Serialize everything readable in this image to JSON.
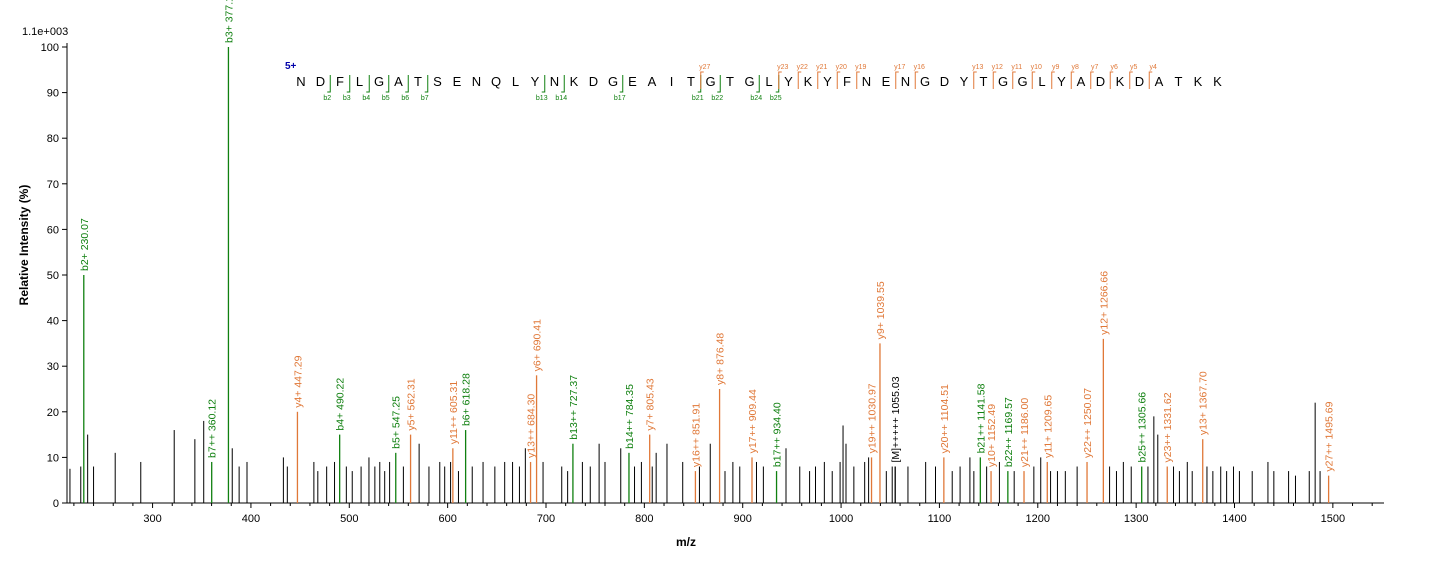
{
  "chart_data": {
    "type": "bar",
    "xlabel": "m/z",
    "ylabel": "Relative   Intensity (%)",
    "scale_label": "1.1e+003",
    "xlim": [
      213,
      1552
    ],
    "ylim": [
      0,
      100
    ],
    "x_ticks": [
      300,
      400,
      500,
      600,
      700,
      800,
      900,
      1000,
      1100,
      1200,
      1300,
      1400,
      1500
    ],
    "y_ticks": [
      0,
      10,
      20,
      30,
      40,
      50,
      60,
      70,
      80,
      90,
      100
    ],
    "colors": {
      "b": "#108010",
      "y": "#e07838",
      "other": "#000000",
      "charge": "#0000aa",
      "axis": "#000000"
    },
    "labeled_peaks": [
      {
        "type": "b",
        "mz": 230.07,
        "y": 50,
        "label": "b2+ 230.07"
      },
      {
        "type": "b",
        "mz": 360.12,
        "y": 9,
        "label": "b7++ 360.12"
      },
      {
        "type": "b",
        "mz": 377.14,
        "y": 100,
        "label": "b3+ 377.14"
      },
      {
        "type": "y",
        "mz": 447.29,
        "y": 20,
        "label": "y4+ 447.29"
      },
      {
        "type": "b",
        "mz": 490.22,
        "y": 15,
        "label": "b4+ 490.22"
      },
      {
        "type": "b",
        "mz": 547.25,
        "y": 11,
        "label": "b5+ 547.25"
      },
      {
        "type": "y",
        "mz": 562.31,
        "y": 15,
        "label": "y5+ 562.31"
      },
      {
        "type": "y",
        "mz": 605.31,
        "y": 12,
        "label": "y11++ 605.31"
      },
      {
        "type": "b",
        "mz": 618.28,
        "y": 16,
        "label": "b6+ 618.28"
      },
      {
        "type": "y",
        "mz": 684.3,
        "y": 9,
        "label": "y13++ 684.30"
      },
      {
        "type": "y",
        "mz": 690.41,
        "y": 28,
        "label": "y6+ 690.41"
      },
      {
        "type": "b",
        "mz": 727.37,
        "y": 13,
        "label": "b13++ 727.37"
      },
      {
        "type": "b",
        "mz": 784.35,
        "y": 11,
        "label": "b14++ 784.35"
      },
      {
        "type": "y",
        "mz": 805.43,
        "y": 15,
        "label": "y7+ 805.43"
      },
      {
        "type": "y",
        "mz": 851.91,
        "y": 7,
        "label": "y16++ 851.91"
      },
      {
        "type": "y",
        "mz": 876.48,
        "y": 25,
        "label": "y8+ 876.48"
      },
      {
        "type": "y",
        "mz": 909.44,
        "y": 10,
        "label": "y17++ 909.44"
      },
      {
        "type": "b",
        "mz": 934.4,
        "y": 7,
        "label": "b17++ 934.40"
      },
      {
        "type": "y",
        "mz": 1030.97,
        "y": 10,
        "label": "y19++ 1030.97"
      },
      {
        "type": "y",
        "mz": 1039.55,
        "y": 35,
        "label": "y9+ 1039.55"
      },
      {
        "type": "other",
        "mz": 1055.03,
        "y": 8,
        "label": "[M]+++++ 1055.03"
      },
      {
        "type": "y",
        "mz": 1104.51,
        "y": 10,
        "label": "y20++ 1104.51"
      },
      {
        "type": "b",
        "mz": 1141.58,
        "y": 10,
        "label": "b21++ 1141.58"
      },
      {
        "type": "y",
        "mz": 1152.49,
        "y": 7,
        "label": "y10+ 1152.49"
      },
      {
        "type": "b",
        "mz": 1169.57,
        "y": 7,
        "label": "b22++ 1169.57"
      },
      {
        "type": "y",
        "mz": 1186.0,
        "y": 7,
        "label": "y21++ 1186.00"
      },
      {
        "type": "y",
        "mz": 1209.65,
        "y": 9,
        "label": "y11+ 1209.65"
      },
      {
        "type": "y",
        "mz": 1250.07,
        "y": 9,
        "label": "y22++ 1250.07"
      },
      {
        "type": "y",
        "mz": 1266.66,
        "y": 36,
        "label": "y12+ 1266.66"
      },
      {
        "type": "b",
        "mz": 1305.66,
        "y": 8,
        "label": "b25++ 1305.66"
      },
      {
        "type": "y",
        "mz": 1331.62,
        "y": 8,
        "label": "y23++ 1331.62"
      },
      {
        "type": "y",
        "mz": 1367.7,
        "y": 14,
        "label": "y13+ 1367.70"
      },
      {
        "type": "y",
        "mz": 1495.69,
        "y": 6,
        "label": "y27++ 1495.69"
      }
    ],
    "unlabeled_peaks": [
      [
        216,
        7.5
      ],
      [
        227,
        8
      ],
      [
        234,
        15
      ],
      [
        240,
        8
      ],
      [
        262,
        11
      ],
      [
        288,
        9
      ],
      [
        322,
        16
      ],
      [
        343,
        14
      ],
      [
        352,
        18
      ],
      [
        381,
        12
      ],
      [
        388,
        8
      ],
      [
        396,
        9
      ],
      [
        433,
        10
      ],
      [
        437,
        8
      ],
      [
        464,
        9
      ],
      [
        468,
        7
      ],
      [
        477,
        8
      ],
      [
        485,
        9
      ],
      [
        497,
        8
      ],
      [
        503,
        7
      ],
      [
        512,
        8
      ],
      [
        520,
        10
      ],
      [
        526,
        8
      ],
      [
        531,
        9
      ],
      [
        536,
        7
      ],
      [
        541,
        9
      ],
      [
        555,
        8
      ],
      [
        571,
        13
      ],
      [
        581,
        8
      ],
      [
        592,
        9
      ],
      [
        597,
        8
      ],
      [
        603,
        9
      ],
      [
        611,
        7
      ],
      [
        625,
        8
      ],
      [
        636,
        9
      ],
      [
        648,
        8
      ],
      [
        658,
        9
      ],
      [
        666,
        9
      ],
      [
        673,
        8
      ],
      [
        679,
        12
      ],
      [
        697,
        9
      ],
      [
        716,
        8
      ],
      [
        722,
        7
      ],
      [
        737,
        9
      ],
      [
        745,
        8
      ],
      [
        754,
        13
      ],
      [
        760,
        9
      ],
      [
        776,
        12
      ],
      [
        790,
        8
      ],
      [
        797,
        9
      ],
      [
        808,
        8
      ],
      [
        812,
        11
      ],
      [
        823,
        13
      ],
      [
        839,
        9
      ],
      [
        856,
        8
      ],
      [
        867,
        13
      ],
      [
        882,
        7
      ],
      [
        890,
        9
      ],
      [
        897,
        8
      ],
      [
        914,
        9
      ],
      [
        921,
        8
      ],
      [
        944,
        12
      ],
      [
        958,
        8
      ],
      [
        968,
        7
      ],
      [
        974,
        8
      ],
      [
        983,
        9
      ],
      [
        991,
        7
      ],
      [
        999,
        9
      ],
      [
        1002,
        17
      ],
      [
        1005,
        13
      ],
      [
        1013,
        8
      ],
      [
        1024,
        9
      ],
      [
        1028,
        10
      ],
      [
        1046,
        7
      ],
      [
        1052,
        8
      ],
      [
        1068,
        8
      ],
      [
        1086,
        9
      ],
      [
        1096,
        8
      ],
      [
        1113,
        7
      ],
      [
        1121,
        8
      ],
      [
        1131,
        10
      ],
      [
        1135,
        7
      ],
      [
        1148,
        8
      ],
      [
        1161,
        9
      ],
      [
        1176,
        7
      ],
      [
        1196,
        8
      ],
      [
        1203,
        10
      ],
      [
        1213,
        7
      ],
      [
        1220,
        7
      ],
      [
        1228,
        7
      ],
      [
        1240,
        8
      ],
      [
        1273,
        8
      ],
      [
        1280,
        7
      ],
      [
        1287,
        9
      ],
      [
        1295,
        8
      ],
      [
        1312,
        8
      ],
      [
        1318,
        19
      ],
      [
        1322,
        15
      ],
      [
        1338,
        8
      ],
      [
        1344,
        7
      ],
      [
        1352,
        9
      ],
      [
        1357,
        7
      ],
      [
        1372,
        8
      ],
      [
        1378,
        7
      ],
      [
        1386,
        8
      ],
      [
        1392,
        7
      ],
      [
        1399,
        8
      ],
      [
        1405,
        7
      ],
      [
        1418,
        7
      ],
      [
        1434,
        9
      ],
      [
        1440,
        7
      ],
      [
        1455,
        7
      ],
      [
        1462,
        6
      ],
      [
        1476,
        7
      ],
      [
        1482,
        22
      ],
      [
        1487,
        7
      ]
    ],
    "sequence": {
      "charge_label": "5+",
      "residues": [
        "N",
        "D",
        "F",
        "L",
        "G",
        "A",
        "T",
        "S",
        "E",
        "N",
        "Q",
        "L",
        "Y",
        "N",
        "K",
        "D",
        "G",
        "E",
        "A",
        "I",
        "T",
        "G",
        "T",
        "G",
        "L",
        "Y",
        "K",
        "Y",
        "F",
        "N",
        "E",
        "N",
        "G",
        "D",
        "Y",
        "T",
        "G",
        "G",
        "L",
        "Y",
        "A",
        "D",
        "K",
        "D",
        "A",
        "T",
        "K",
        "K"
      ],
      "b_ions": [
        2,
        3,
        4,
        5,
        6,
        7,
        13,
        14,
        17,
        21,
        22,
        24,
        25
      ],
      "y_ions": [
        27,
        23,
        22,
        21,
        20,
        19,
        17,
        16,
        13,
        12,
        11,
        10,
        9,
        8,
        7,
        6,
        5,
        4
      ]
    }
  }
}
